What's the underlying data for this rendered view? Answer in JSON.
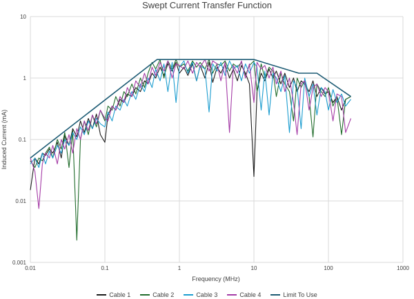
{
  "chart_data": {
    "type": "line",
    "title": "Swept Current Transfer Function",
    "xlabel": "Frequency (MHz)",
    "ylabel": "Induced Current (mA)",
    "x_scale": "log",
    "y_scale": "log",
    "xlim": [
      0.01,
      1000
    ],
    "ylim": [
      0.001,
      10
    ],
    "x_ticks": [
      "0.01",
      "0.1",
      "1",
      "10",
      "100",
      "1000"
    ],
    "y_ticks": [
      "0.001",
      "0.01",
      "0.1",
      "1",
      "10"
    ],
    "grid": true,
    "legend_position": "bottom",
    "series": [
      {
        "name": "Cable 1",
        "color": "#1a1a1a",
        "x": [
          0.01,
          0.0115,
          0.013,
          0.0145,
          0.016,
          0.018,
          0.02,
          0.023,
          0.026,
          0.029,
          0.033,
          0.037,
          0.042,
          0.047,
          0.053,
          0.06,
          0.068,
          0.077,
          0.087,
          0.1,
          0.11,
          0.125,
          0.14,
          0.16,
          0.18,
          0.2,
          0.23,
          0.26,
          0.3,
          0.34,
          0.38,
          0.43,
          0.48,
          0.55,
          0.62,
          0.7,
          0.8,
          0.9,
          1.0,
          1.15,
          1.3,
          1.5,
          1.7,
          1.9,
          2.2,
          2.5,
          2.8,
          3.2,
          3.6,
          4.1,
          4.7,
          5.3,
          6.0,
          6.8,
          7.7,
          8.7,
          10.0,
          11.0,
          12.5,
          14.0,
          16.0,
          18.0,
          20.0,
          23.0,
          26.0,
          30.0,
          34.0,
          38.0,
          43.0,
          48.0,
          55.0,
          62.0,
          70.0,
          80.0,
          90.0,
          100.0,
          115.0,
          130.0,
          150.0,
          170.0,
          200.0
        ],
        "y": [
          0.015,
          0.05,
          0.04,
          0.06,
          0.055,
          0.07,
          0.06,
          0.09,
          0.05,
          0.12,
          0.08,
          0.15,
          0.11,
          0.2,
          0.13,
          0.22,
          0.15,
          0.26,
          0.12,
          0.09,
          0.25,
          0.35,
          0.3,
          0.45,
          0.4,
          0.55,
          0.5,
          0.7,
          0.6,
          0.9,
          0.8,
          1.2,
          1.0,
          1.5,
          1.1,
          1.7,
          1.3,
          1.8,
          1.2,
          1.5,
          1.1,
          1.7,
          0.9,
          1.6,
          1.0,
          1.8,
          0.85,
          1.5,
          1.2,
          1.7,
          1.0,
          1.4,
          0.9,
          1.6,
          1.2,
          0.8,
          0.025,
          0.6,
          1.2,
          0.9,
          1.4,
          1.0,
          1.3,
          0.8,
          1.2,
          0.7,
          1.0,
          0.6,
          0.9,
          0.8,
          0.6,
          0.9,
          0.5,
          0.7,
          0.55,
          0.6,
          0.4,
          0.5,
          0.3,
          0.45,
          0.5
        ]
      },
      {
        "name": "Cable 2",
        "color": "#1f6b2a",
        "x": [
          0.01,
          0.0115,
          0.013,
          0.0145,
          0.016,
          0.018,
          0.02,
          0.023,
          0.026,
          0.029,
          0.033,
          0.037,
          0.042,
          0.047,
          0.053,
          0.06,
          0.068,
          0.077,
          0.087,
          0.1,
          0.11,
          0.125,
          0.14,
          0.16,
          0.18,
          0.2,
          0.23,
          0.26,
          0.3,
          0.34,
          0.38,
          0.43,
          0.48,
          0.55,
          0.62,
          0.7,
          0.8,
          0.9,
          1.0,
          1.15,
          1.3,
          1.5,
          1.7,
          1.9,
          2.2,
          2.5,
          2.8,
          3.2,
          3.6,
          4.1,
          4.7,
          5.3,
          6.0,
          6.8,
          7.7,
          8.7,
          10.0,
          11.0,
          12.5,
          14.0,
          16.0,
          18.0,
          20.0,
          23.0,
          26.0,
          30.0,
          34.0,
          38.0,
          43.0,
          48.0,
          55.0,
          62.0,
          70.0,
          80.0,
          90.0,
          100.0,
          115.0,
          130.0,
          150.0,
          170.0,
          200.0
        ],
        "y": [
          0.045,
          0.035,
          0.05,
          0.045,
          0.06,
          0.075,
          0.05,
          0.1,
          0.07,
          0.13,
          0.035,
          0.14,
          0.0023,
          0.1,
          0.2,
          0.12,
          0.25,
          0.16,
          0.3,
          0.2,
          0.35,
          0.3,
          0.5,
          0.35,
          0.6,
          0.5,
          0.8,
          0.55,
          1.0,
          0.7,
          1.2,
          1.8,
          1.4,
          2.0,
          1.0,
          1.9,
          1.4,
          2.0,
          1.5,
          1.7,
          1.3,
          1.9,
          1.5,
          1.8,
          1.4,
          2.0,
          1.2,
          1.7,
          1.6,
          1.9,
          1.3,
          1.7,
          1.5,
          1.8,
          1.1,
          1.6,
          1.9,
          0.6,
          1.7,
          1.0,
          1.5,
          1.3,
          0.5,
          1.2,
          0.8,
          0.6,
          0.2,
          1.0,
          0.7,
          0.9,
          0.5,
          0.11,
          0.8,
          0.6,
          0.5,
          0.7,
          0.35,
          0.5,
          0.12,
          0.45,
          0.5
        ]
      },
      {
        "name": "Cable 3",
        "color": "#1a9ccf",
        "x": [
          0.01,
          0.0115,
          0.013,
          0.0145,
          0.016,
          0.018,
          0.02,
          0.023,
          0.026,
          0.029,
          0.033,
          0.037,
          0.042,
          0.047,
          0.053,
          0.06,
          0.068,
          0.077,
          0.087,
          0.1,
          0.11,
          0.125,
          0.14,
          0.16,
          0.18,
          0.2,
          0.23,
          0.26,
          0.3,
          0.34,
          0.38,
          0.43,
          0.48,
          0.55,
          0.62,
          0.7,
          0.8,
          0.9,
          1.0,
          1.15,
          1.3,
          1.5,
          1.7,
          1.9,
          2.2,
          2.5,
          2.8,
          3.2,
          3.6,
          4.1,
          4.7,
          5.3,
          6.0,
          6.8,
          7.7,
          8.7,
          10.0,
          11.0,
          12.5,
          14.0,
          16.0,
          18.0,
          20.0,
          23.0,
          26.0,
          30.0,
          34.0,
          38.0,
          43.0,
          48.0,
          55.0,
          62.0,
          70.0,
          80.0,
          90.0,
          100.0,
          115.0,
          130.0,
          150.0,
          170.0,
          200.0
        ],
        "y": [
          0.04,
          0.05,
          0.035,
          0.06,
          0.04,
          0.065,
          0.05,
          0.08,
          0.06,
          0.1,
          0.08,
          0.13,
          0.1,
          0.16,
          0.12,
          0.2,
          0.15,
          0.22,
          0.18,
          0.16,
          0.28,
          0.2,
          0.35,
          0.3,
          0.45,
          0.35,
          0.6,
          0.45,
          0.8,
          0.6,
          1.0,
          0.7,
          1.4,
          0.9,
          1.7,
          0.6,
          1.8,
          0.4,
          1.5,
          1.9,
          1.2,
          1.8,
          0.9,
          1.6,
          1.4,
          0.28,
          1.7,
          1.3,
          1.8,
          1.1,
          1.9,
          1.4,
          1.6,
          0.9,
          1.7,
          1.2,
          1.8,
          1.5,
          0.3,
          1.3,
          0.25,
          1.2,
          1.0,
          0.6,
          1.1,
          0.13,
          0.9,
          0.7,
          0.15,
          1.0,
          0.5,
          0.8,
          0.25,
          0.7,
          0.6,
          0.3,
          0.65,
          0.4,
          0.55,
          0.35,
          0.45
        ]
      },
      {
        "name": "Cable 4",
        "color": "#a43aa6",
        "x": [
          0.01,
          0.0115,
          0.013,
          0.0145,
          0.016,
          0.018,
          0.02,
          0.023,
          0.026,
          0.029,
          0.033,
          0.037,
          0.042,
          0.047,
          0.053,
          0.06,
          0.068,
          0.077,
          0.087,
          0.1,
          0.11,
          0.125,
          0.14,
          0.16,
          0.18,
          0.2,
          0.23,
          0.26,
          0.3,
          0.34,
          0.38,
          0.43,
          0.48,
          0.55,
          0.62,
          0.7,
          0.8,
          0.9,
          1.0,
          1.15,
          1.3,
          1.5,
          1.7,
          1.9,
          2.2,
          2.5,
          2.8,
          3.2,
          3.6,
          4.1,
          4.7,
          5.3,
          6.0,
          6.8,
          7.7,
          8.7,
          10.0,
          11.0,
          12.5,
          14.0,
          16.0,
          18.0,
          20.0,
          23.0,
          26.0,
          30.0,
          34.0,
          38.0,
          43.0,
          48.0,
          55.0,
          62.0,
          70.0,
          80.0,
          90.0,
          100.0,
          115.0,
          130.0,
          150.0,
          170.0,
          200.0
        ],
        "y": [
          0.05,
          0.03,
          0.0075,
          0.04,
          0.06,
          0.05,
          0.08,
          0.04,
          0.1,
          0.07,
          0.12,
          0.06,
          0.15,
          0.1,
          0.2,
          0.14,
          0.25,
          0.18,
          0.3,
          0.22,
          0.2,
          0.35,
          0.3,
          0.5,
          0.4,
          0.7,
          0.5,
          0.9,
          0.7,
          1.2,
          0.8,
          1.5,
          1.1,
          1.8,
          1.3,
          1.9,
          1.0,
          1.7,
          1.6,
          1.4,
          1.9,
          1.2,
          1.8,
          1.5,
          2.0,
          1.3,
          1.9,
          1.7,
          0.9,
          1.8,
          0.13,
          1.6,
          1.2,
          1.9,
          1.0,
          1.7,
          0.4,
          1.8,
          1.4,
          1.6,
          1.0,
          1.5,
          0.8,
          1.3,
          0.6,
          1.0,
          0.4,
          0.12,
          0.8,
          0.9,
          0.3,
          0.7,
          0.8,
          0.5,
          0.7,
          0.6,
          0.2,
          0.55,
          0.5,
          0.13,
          0.22
        ]
      },
      {
        "name": "Limit To Use",
        "color": "#1b5a73",
        "x": [
          0.01,
          0.5,
          10.0,
          40.0,
          70.0,
          200.0
        ],
        "y": [
          0.05,
          2.0,
          2.0,
          1.2,
          1.2,
          0.5
        ]
      }
    ]
  }
}
